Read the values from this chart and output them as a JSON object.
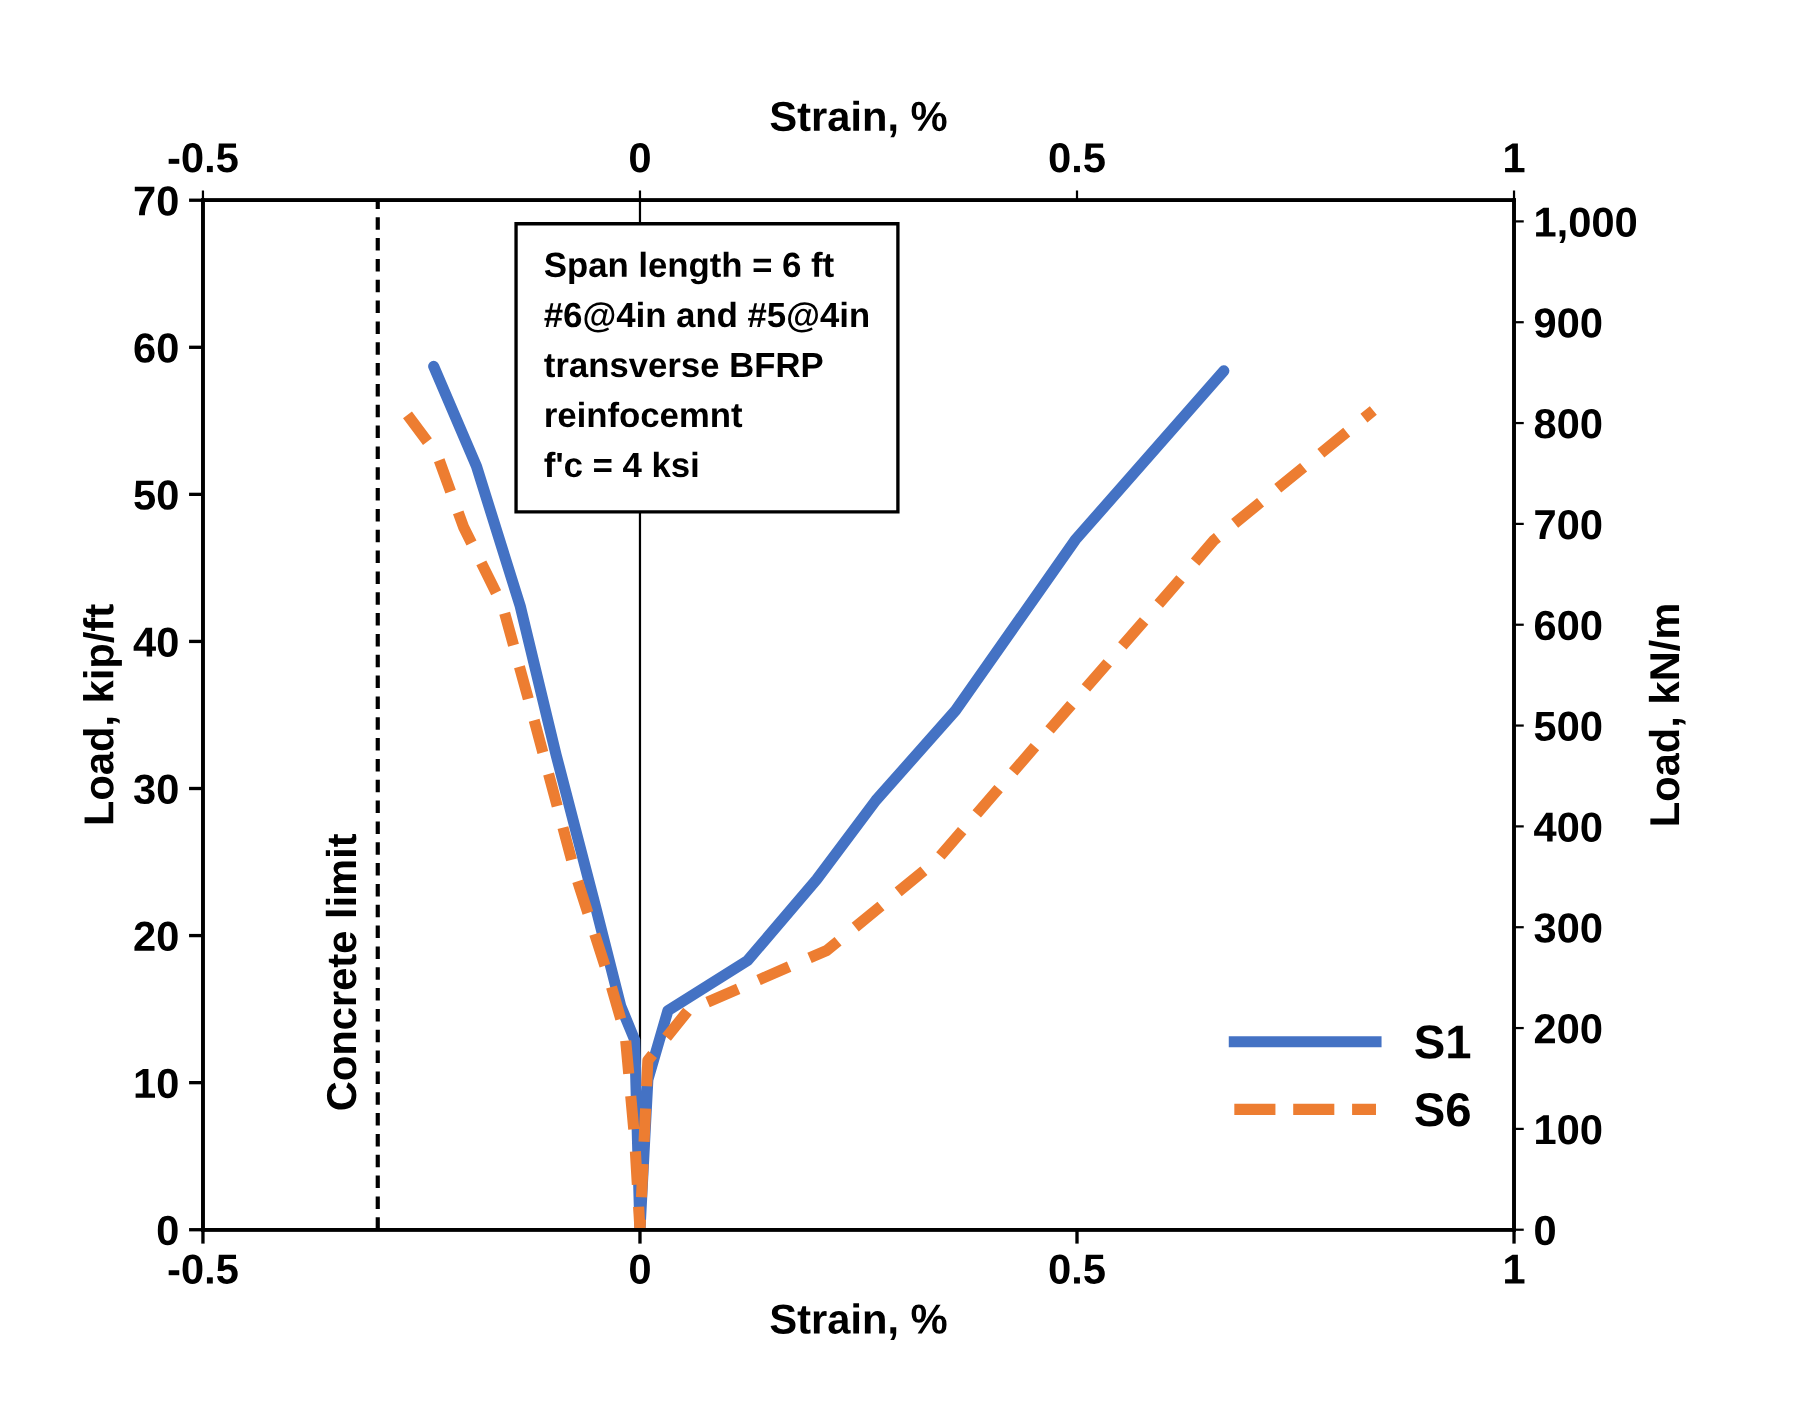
{
  "chart_data": {
    "type": "line",
    "xlabel": "Strain, %",
    "x2label": "Strain, %",
    "ylabel": "Load, kip/ft",
    "y2label": "Load, kN/m",
    "xlim": [
      -0.5,
      1
    ],
    "xticks": [
      -0.5,
      0,
      0.5,
      1
    ],
    "x2lim": [
      -0.5,
      1
    ],
    "x2ticks": [
      -0.5,
      0,
      0.5,
      1
    ],
    "ylim": [
      0,
      70
    ],
    "yticks": [
      0,
      10,
      20,
      30,
      40,
      50,
      60,
      70
    ],
    "y2lim": [
      0,
      1021
    ],
    "y2ticks": [
      0,
      100,
      200,
      300,
      400,
      500,
      600,
      700,
      800,
      900,
      {
        "value": 1000,
        "label": "1,000"
      }
    ],
    "grid": false,
    "legend": "bottom right",
    "marker": "none",
    "ref_lines": [
      {
        "axis": "x",
        "value": -0.3,
        "label": "Concrete limit",
        "color": "#000000",
        "line_style": "dashed"
      },
      {
        "axis": "x",
        "value": 0,
        "label": null,
        "color": "#000000",
        "line_style": "solid"
      }
    ],
    "annotations": [
      "Span length = 6 ft\n#6@4in and #5@4in\ntransverse BFRP\nreinfocemnt\nf'c = 4 ksi"
    ],
    "series": [
      {
        "name": "S1",
        "color": "#4472c4",
        "line_style": "solid",
        "x": [
          -0.236,
          -0.187,
          -0.137,
          -0.096,
          -0.051,
          -0.022,
          -0.006,
          0,
          0.009,
          0.032,
          0.123,
          0.202,
          0.27,
          0.361,
          0.498,
          0.668
        ],
        "values": [
          58.7,
          51.9,
          42.4,
          32.3,
          22,
          15.2,
          12.9,
          0,
          10.2,
          14.9,
          18.3,
          23.8,
          29.2,
          35.3,
          46.9,
          58.4
        ]
      },
      {
        "name": "S6",
        "color": "#ed7d31",
        "line_style": "dashed",
        "x": [
          -0.266,
          -0.232,
          -0.202,
          -0.157,
          -0.119,
          -0.074,
          -0.035,
          -0.017,
          -0.006,
          0,
          0.009,
          0.055,
          0.214,
          0.339,
          0.498,
          0.657,
          0.839
        ],
        "values": [
          55.4,
          52.7,
          47.8,
          42.4,
          34.2,
          24.2,
          17,
          13.3,
          6.1,
          0,
          11.5,
          14.9,
          19,
          25.1,
          36,
          46.9,
          55.7
        ]
      }
    ]
  }
}
